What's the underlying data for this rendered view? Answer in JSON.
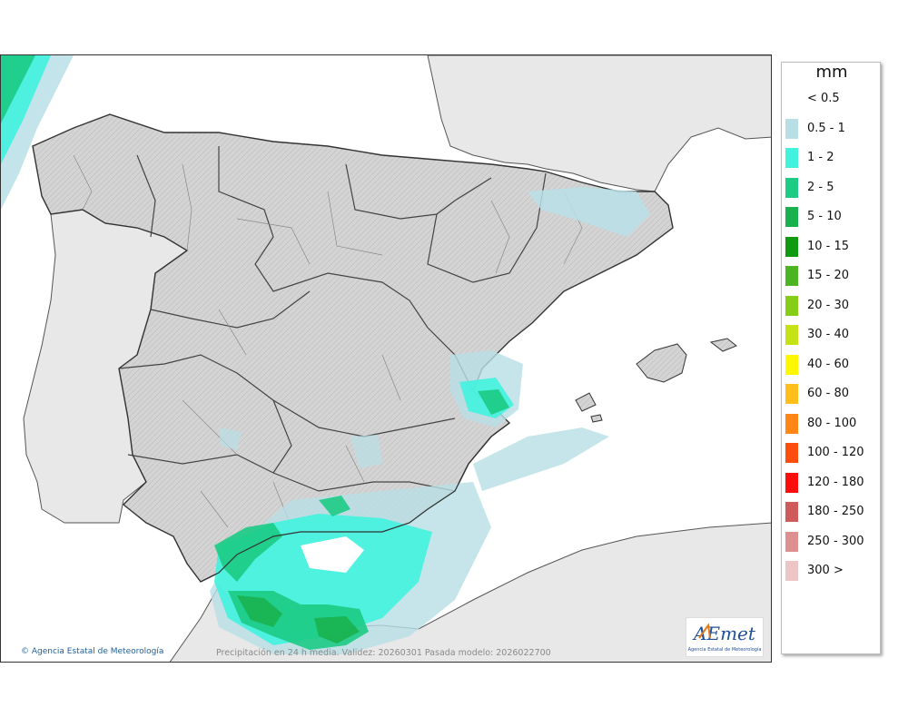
{
  "map": {
    "caption": "Precipitación en 24 h media. Validez: 20260301 Pasada modelo: 2026022700",
    "credit": "Agencia Estatal de Meteorología",
    "credit_symbol": "©",
    "logo": {
      "text": "AEmet",
      "subtext": "Agencia Estatal de Meteorología"
    },
    "region": "Iberian Peninsula and Balearic Islands"
  },
  "legend": {
    "unit": "mm",
    "classes": [
      {
        "label": "< 0.5",
        "color": "#ffffff"
      },
      {
        "label": "0.5 - 1",
        "color": "#b8dfe6"
      },
      {
        "label": "1 - 2",
        "color": "#41f2de"
      },
      {
        "label": "2 - 5",
        "color": "#1ccb84"
      },
      {
        "label": "5 - 10",
        "color": "#19b14e"
      },
      {
        "label": "10 - 15",
        "color": "#0f9a12"
      },
      {
        "label": "15 - 20",
        "color": "#4ab421"
      },
      {
        "label": "20 - 30",
        "color": "#86cd18"
      },
      {
        "label": "30 - 40",
        "color": "#c5e314"
      },
      {
        "label": "40 - 60",
        "color": "#fff700"
      },
      {
        "label": "60 - 80",
        "color": "#ffbe1a"
      },
      {
        "label": "80 - 100",
        "color": "#ff8614"
      },
      {
        "label": "100 - 120",
        "color": "#ff4d10"
      },
      {
        "label": "120 - 180",
        "color": "#ff0d0d"
      },
      {
        "label": "180 - 250",
        "color": "#cf5a5a"
      },
      {
        "label": "250 - 300",
        "color": "#de9090"
      },
      {
        "label": "300 >",
        "color": "#eec5c5"
      }
    ]
  }
}
